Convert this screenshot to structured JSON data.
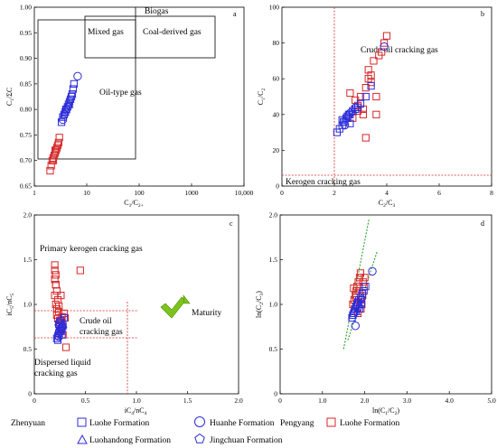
{
  "chart_data": [
    {
      "panel": "a",
      "type": "scatter",
      "xlabel": "C1/C2+",
      "ylabel": "C1/ΣC",
      "xscale": "log",
      "xlim": [
        1,
        10000
      ],
      "ylim": [
        0.65,
        1.0
      ],
      "xticks": [
        "1",
        "10",
        "100",
        "1000",
        "10,000"
      ],
      "yticks": [
        "0.65",
        "0.70",
        "0.75",
        "0.80",
        "0.85",
        "0.90",
        "0.95",
        "1.00"
      ],
      "annotations": [
        "Biogas",
        "Mixed gas",
        "Coal-derived gas",
        "Oil-type gas"
      ],
      "series": [
        {
          "name": "Luohe Formation",
          "group": "Pengyang",
          "marker": "square",
          "color": "#d62728",
          "x": [
            2.0,
            2.1,
            2.2,
            2.3,
            2.4,
            2.5,
            2.6,
            2.7,
            2.8,
            2.9,
            3.0,
            2.3,
            2.5
          ],
          "y": [
            0.68,
            0.69,
            0.7,
            0.705,
            0.71,
            0.715,
            0.72,
            0.725,
            0.73,
            0.735,
            0.745,
            0.7,
            0.72
          ]
        },
        {
          "name": "Luohe Formation",
          "group": "Zhenyuan",
          "marker": "square",
          "color": "#2b2bd9",
          "x": [
            3.3,
            3.5,
            3.7,
            3.9,
            4.1,
            4.3,
            4.5,
            4.7,
            4.9,
            5.1,
            5.3,
            5.5,
            5.7,
            4.0
          ],
          "y": [
            0.775,
            0.785,
            0.79,
            0.795,
            0.8,
            0.805,
            0.81,
            0.815,
            0.82,
            0.825,
            0.83,
            0.84,
            0.85,
            0.8
          ]
        },
        {
          "name": "Huanhe Formation",
          "group": "Zhenyuan",
          "marker": "circle",
          "color": "#2b2bd9",
          "x": [
            3.5,
            6.7
          ],
          "y": [
            0.78,
            0.865
          ]
        },
        {
          "name": "Luohandong Formation",
          "group": "Zhenyuan",
          "marker": "triangle",
          "color": "#2b2bd9",
          "x": [
            4.0,
            4.6
          ],
          "y": [
            0.8,
            0.81
          ]
        },
        {
          "name": "Jingchuan Formation",
          "group": "Zhenyuan",
          "marker": "pentagon",
          "color": "#2b2bd9",
          "x": [
            3.8,
            4.4
          ],
          "y": [
            0.79,
            0.805
          ]
        }
      ]
    },
    {
      "panel": "b",
      "type": "scatter",
      "xlabel": "C2/C3",
      "ylabel": "C1/C2",
      "xlim": [
        0,
        8
      ],
      "ylim": [
        0,
        100
      ],
      "xticks": [
        "0",
        "2",
        "4",
        "6",
        "8"
      ],
      "yticks": [
        "0",
        "20",
        "40",
        "60",
        "80",
        "100"
      ],
      "annotations": [
        "Crude oil cracking gas",
        "Kerogen cracking gas"
      ],
      "series": [
        {
          "name": "Luohe Formation",
          "group": "Pengyang",
          "marker": "square",
          "color": "#d62728",
          "x": [
            2.9,
            3.0,
            3.1,
            3.2,
            3.3,
            3.4,
            3.5,
            3.6,
            3.7,
            3.8,
            3.9,
            4.0,
            2.6,
            2.7,
            2.8,
            3.1,
            3.3,
            3.6,
            3.2,
            3.4,
            2.9
          ],
          "y": [
            45,
            50,
            40,
            55,
            60,
            62,
            70,
            50,
            73,
            75,
            80,
            84,
            52,
            38,
            48,
            43,
            65,
            40,
            27,
            58,
            42
          ]
        },
        {
          "name": "Luohe Formation",
          "group": "Zhenyuan",
          "marker": "square",
          "color": "#2b2bd9",
          "x": [
            2.1,
            2.2,
            2.3,
            2.35,
            2.4,
            2.45,
            2.5,
            2.55,
            2.6,
            2.7,
            2.8,
            2.9,
            3.0,
            3.2,
            3.4,
            2.3,
            2.5,
            2.6
          ],
          "y": [
            30,
            32,
            34,
            36,
            36,
            38,
            38,
            40,
            40,
            42,
            43,
            44,
            46,
            50,
            56,
            37,
            39,
            35
          ]
        },
        {
          "name": "Huanhe Formation",
          "group": "Zhenyuan",
          "marker": "circle",
          "color": "#2b2bd9",
          "x": [
            3.9,
            2.4
          ],
          "y": [
            78,
            34
          ]
        },
        {
          "name": "Luohandong Formation",
          "group": "Zhenyuan",
          "marker": "triangle",
          "color": "#2b2bd9",
          "x": [
            2.5,
            2.7
          ],
          "y": [
            40,
            42
          ]
        },
        {
          "name": "Jingchuan Formation",
          "group": "Zhenyuan",
          "marker": "pentagon",
          "color": "#2b2bd9",
          "x": [
            2.6,
            2.8
          ],
          "y": [
            41,
            44
          ]
        }
      ]
    },
    {
      "panel": "c",
      "type": "scatter",
      "xlabel": "iC4/nC4",
      "ylabel": "iC5/nC5",
      "xlim": [
        0,
        2.0
      ],
      "ylim": [
        0,
        2.0
      ],
      "xticks": [
        "0",
        "0.5",
        "1.0",
        "1.5",
        "2.0"
      ],
      "yticks": [
        "0",
        "0.5",
        "1.0",
        "1.5",
        "2.0"
      ],
      "annotations": [
        "Primary kerogen cracking gas",
        "Crude oil cracking gas",
        "Dispersed liquid cracking gas",
        "Maturity"
      ],
      "series": [
        {
          "name": "Luohe Formation",
          "group": "Pengyang",
          "marker": "square",
          "color": "#d62728",
          "x": [
            0.2,
            0.2,
            0.21,
            0.2,
            0.21,
            0.22,
            0.2,
            0.23,
            0.21,
            0.22,
            0.24,
            0.22,
            0.23,
            0.25,
            0.27,
            0.29,
            0.25,
            0.26,
            0.28,
            0.45,
            0.31,
            0.3,
            0.21,
            0.24,
            0.27,
            0.26
          ],
          "y": [
            1.44,
            1.38,
            1.33,
            1.28,
            1.22,
            1.15,
            1.1,
            1.05,
            1.0,
            0.95,
            0.92,
            0.88,
            0.84,
            0.82,
            0.8,
            0.9,
            0.75,
            0.7,
            0.66,
            1.38,
            0.52,
            0.85,
            1.22,
            0.98,
            0.86,
            1.1
          ]
        },
        {
          "name": "Luohe Formation",
          "group": "Zhenyuan",
          "marker": "square",
          "color": "#2b2bd9",
          "x": [
            0.22,
            0.23,
            0.24,
            0.25,
            0.26,
            0.27,
            0.28,
            0.24,
            0.25,
            0.26,
            0.23,
            0.27,
            0.29
          ],
          "y": [
            0.62,
            0.65,
            0.68,
            0.7,
            0.72,
            0.74,
            0.76,
            0.78,
            0.8,
            0.82,
            0.6,
            0.66,
            0.85
          ]
        },
        {
          "name": "Huanhe Formation",
          "group": "Zhenyuan",
          "marker": "circle",
          "color": "#2b2bd9",
          "x": [
            0.27,
            0.24
          ],
          "y": [
            0.74,
            0.64
          ]
        },
        {
          "name": "Luohandong Formation",
          "group": "Zhenyuan",
          "marker": "triangle",
          "color": "#2b2bd9",
          "x": [
            0.25,
            0.28
          ],
          "y": [
            0.7,
            0.78
          ]
        },
        {
          "name": "Jingchuan Formation",
          "group": "Zhenyuan",
          "marker": "pentagon",
          "color": "#2b2bd9",
          "x": [
            0.26,
            0.24
          ],
          "y": [
            0.72,
            0.76
          ]
        }
      ]
    },
    {
      "panel": "d",
      "type": "scatter",
      "xlabel": "ln(C1/C2)",
      "ylabel": "ln(C2/C3)",
      "xlim": [
        0,
        5.0
      ],
      "ylim": [
        0,
        2.0
      ],
      "xticks": [
        "0",
        "1.0",
        "2.0",
        "3.0",
        "4.0",
        "5.0"
      ],
      "yticks": [
        "0",
        "0.5",
        "1.0",
        "1.5",
        "2.0"
      ],
      "series": [
        {
          "name": "Luohe Formation",
          "group": "Pengyang",
          "marker": "square",
          "color": "#d62728",
          "x": [
            1.72,
            1.75,
            1.78,
            1.8,
            1.82,
            1.85,
            1.88,
            1.9,
            1.92,
            1.95,
            1.98,
            2.0,
            1.76,
            1.84,
            1.93,
            1.87,
            1.8,
            1.96,
            1.74,
            1.91
          ],
          "y": [
            1.0,
            1.05,
            1.1,
            1.15,
            1.2,
            1.25,
            1.3,
            1.35,
            1.05,
            1.1,
            1.2,
            1.3,
            0.95,
            0.9,
            1.0,
            1.15,
            1.08,
            1.25,
            1.18,
            0.95
          ]
        },
        {
          "name": "Luohe Formation",
          "group": "Zhenyuan",
          "marker": "square",
          "color": "#2b2bd9",
          "x": [
            1.7,
            1.72,
            1.74,
            1.76,
            1.78,
            1.8,
            1.82,
            1.84,
            1.86,
            1.9,
            1.94,
            1.98,
            2.02,
            1.88,
            1.92
          ],
          "y": [
            0.85,
            0.88,
            0.9,
            0.92,
            0.95,
            0.98,
            1.0,
            1.02,
            1.05,
            1.08,
            1.12,
            1.15,
            1.2,
            0.95,
            1.0
          ]
        },
        {
          "name": "Huanhe Formation",
          "group": "Zhenyuan",
          "marker": "circle",
          "color": "#2b2bd9",
          "x": [
            2.18,
            1.78
          ],
          "y": [
            1.37,
            0.76
          ]
        },
        {
          "name": "Luohandong Formation",
          "group": "Zhenyuan",
          "marker": "triangle",
          "color": "#2b2bd9",
          "x": [
            1.8,
            1.88
          ],
          "y": [
            0.92,
            1.0
          ]
        },
        {
          "name": "Jingchuan Formation",
          "group": "Zhenyuan",
          "marker": "pentagon",
          "color": "#2b2bd9",
          "x": [
            1.84,
            1.93
          ],
          "y": [
            0.96,
            1.06
          ]
        }
      ],
      "trend_lines": [
        {
          "color": "#2ca02c",
          "x": [
            1.5,
            2.1
          ],
          "y": [
            0.5,
            1.95
          ]
        },
        {
          "color": "#2ca02c",
          "x": [
            1.6,
            2.3
          ],
          "y": [
            0.6,
            1.6
          ]
        }
      ]
    }
  ],
  "legend": {
    "zhenyuan_label": "Zhenyuan",
    "pengyang_label": "Pengyang",
    "entries": [
      {
        "label": "Luohe Formation",
        "marker": "square",
        "color": "#2b2bd9",
        "group": "Zhenyuan"
      },
      {
        "label": "Huanhe Formation",
        "marker": "circle",
        "color": "#2b2bd9",
        "group": "Zhenyuan"
      },
      {
        "label": "Luohandong Formation",
        "marker": "triangle",
        "color": "#2b2bd9",
        "group": "Zhenyuan"
      },
      {
        "label": "Jingchuan Formation",
        "marker": "pentagon",
        "color": "#2b2bd9",
        "group": "Zhenyuan"
      },
      {
        "label": "Luohe Formation",
        "marker": "square",
        "color": "#d62728",
        "group": "Pengyang"
      }
    ]
  },
  "panel_labels": [
    "a",
    "b",
    "c",
    "d"
  ],
  "colors": {
    "zhenyuan": "#2b2bd9",
    "pengyang": "#d62728",
    "guide": "#d62728",
    "trend": "#2ca02c",
    "arrow": "#7cc41c"
  }
}
